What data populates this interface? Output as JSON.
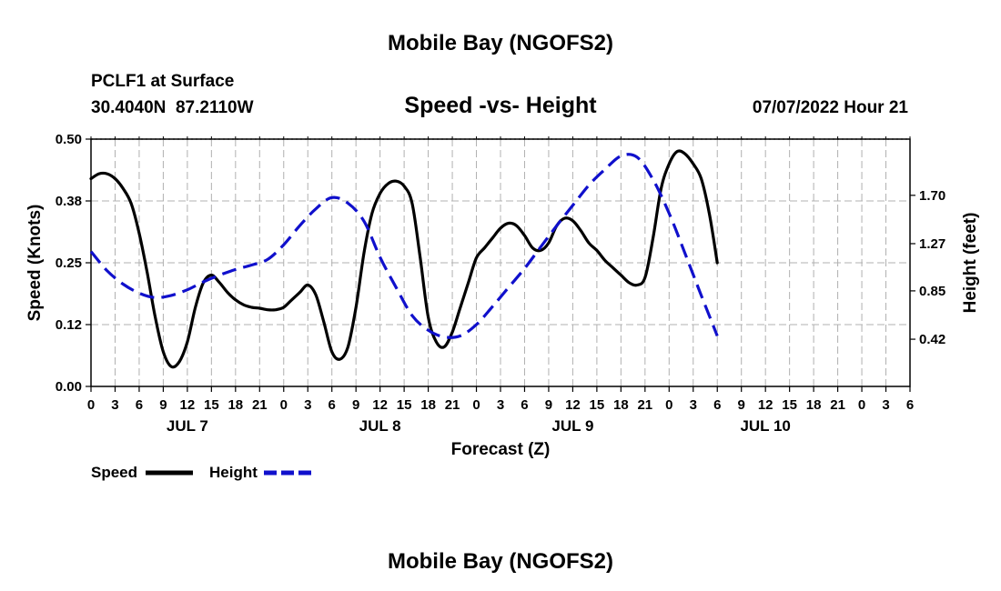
{
  "page": {
    "title": "Mobile Bay (NGOFS2)",
    "footer_title": "Mobile Bay (NGOFS2)",
    "station_line1": "PCLF1 at Surface",
    "station_line2": "30.4040N  87.2110W",
    "date_label": "07/07/2022 Hour 21"
  },
  "chart_data": {
    "type": "line",
    "title": "Speed -vs- Height",
    "xlabel": "Forecast (Z)",
    "ylabel_left": "Speed (Knots)",
    "ylabel_right": "Height (feet)",
    "x_unit": "hours from 00Z JUL 7",
    "xlim": [
      -21,
      78
    ],
    "x_ticks": [
      {
        "x": -21,
        "label": "0"
      },
      {
        "x": -18,
        "label": "3"
      },
      {
        "x": -15,
        "label": "6"
      },
      {
        "x": -12,
        "label": "9"
      },
      {
        "x": -9,
        "label": "12"
      },
      {
        "x": -6,
        "label": "15"
      },
      {
        "x": -3,
        "label": "18"
      },
      {
        "x": 0,
        "label": "21"
      },
      {
        "x": 3,
        "label": "0"
      },
      {
        "x": 6,
        "label": "3"
      },
      {
        "x": 9,
        "label": "6"
      },
      {
        "x": 12,
        "label": "9"
      },
      {
        "x": 15,
        "label": "12"
      },
      {
        "x": 18,
        "label": "15"
      },
      {
        "x": 21,
        "label": "18"
      },
      {
        "x": 24,
        "label": "21"
      },
      {
        "x": 27,
        "label": "0"
      },
      {
        "x": 30,
        "label": "3"
      },
      {
        "x": 33,
        "label": "6"
      },
      {
        "x": 36,
        "label": "9"
      },
      {
        "x": 39,
        "label": "12"
      },
      {
        "x": 42,
        "label": "15"
      },
      {
        "x": 45,
        "label": "18"
      },
      {
        "x": 48,
        "label": "21"
      },
      {
        "x": 51,
        "label": "0"
      },
      {
        "x": 54,
        "label": "3"
      },
      {
        "x": 57,
        "label": "6"
      },
      {
        "x": 60,
        "label": "9"
      },
      {
        "x": 63,
        "label": "12"
      },
      {
        "x": 66,
        "label": "15"
      },
      {
        "x": 69,
        "label": "18"
      },
      {
        "x": 72,
        "label": "21"
      },
      {
        "x": 75,
        "label": "0"
      },
      {
        "x": 78,
        "label": "3"
      },
      {
        "x": 81,
        "label": "6"
      }
    ],
    "day_labels": [
      {
        "x": -9,
        "label": "JUL 7"
      },
      {
        "x": 15,
        "label": "JUL 8"
      },
      {
        "x": 39,
        "label": "JUL 9"
      },
      {
        "x": 63,
        "label": "JUL 10"
      }
    ],
    "ylim_left": [
      0,
      0.5
    ],
    "yticks_left": [
      "0.00",
      "0.12",
      "0.25",
      "0.38",
      "0.50"
    ],
    "ylim_right": [
      0.0,
      2.2
    ],
    "yticks_right": [
      {
        "v": 0.42,
        "label": "0.42"
      },
      {
        "v": 0.85,
        "label": "0.85"
      },
      {
        "v": 1.27,
        "label": "1.27"
      },
      {
        "v": 1.7,
        "label": "1.70"
      }
    ],
    "grid": true,
    "legend_position": "bottom-left",
    "series": [
      {
        "name": "Speed",
        "axis": "left",
        "color": "#000000",
        "style": "solid",
        "x": [
          -21,
          -20,
          -19,
          -18,
          -17,
          -16,
          -15,
          -14,
          -13,
          -12,
          -11,
          -10,
          -9,
          -8,
          -7,
          -6,
          -5,
          -4,
          -3,
          -2,
          -1,
          0,
          1,
          2,
          3,
          4,
          5,
          6,
          7,
          8,
          9,
          10,
          11,
          12,
          13,
          14,
          15,
          16,
          17,
          18,
          19,
          20,
          21,
          22,
          23,
          24,
          25,
          26,
          27,
          28,
          29,
          30,
          31,
          32,
          33,
          34,
          35,
          36,
          37,
          38,
          39,
          40,
          41,
          42,
          43,
          44,
          45,
          46,
          47,
          48,
          49,
          50,
          51,
          52,
          53,
          54,
          55,
          56,
          57
        ],
        "values": [
          0.42,
          0.43,
          0.43,
          0.42,
          0.4,
          0.37,
          0.31,
          0.23,
          0.14,
          0.07,
          0.04,
          0.05,
          0.09,
          0.16,
          0.21,
          0.225,
          0.21,
          0.19,
          0.175,
          0.165,
          0.16,
          0.158,
          0.155,
          0.155,
          0.16,
          0.175,
          0.19,
          0.205,
          0.185,
          0.13,
          0.07,
          0.055,
          0.08,
          0.16,
          0.27,
          0.35,
          0.39,
          0.41,
          0.415,
          0.405,
          0.37,
          0.26,
          0.14,
          0.09,
          0.08,
          0.11,
          0.16,
          0.21,
          0.26,
          0.28,
          0.3,
          0.32,
          0.33,
          0.325,
          0.305,
          0.28,
          0.275,
          0.29,
          0.325,
          0.34,
          0.335,
          0.315,
          0.29,
          0.275,
          0.255,
          0.24,
          0.225,
          0.21,
          0.205,
          0.22,
          0.3,
          0.4,
          0.45,
          0.475,
          0.47,
          0.45,
          0.42,
          0.35,
          0.25
        ]
      },
      {
        "name": "Height",
        "axis": "right",
        "color": "#1010cc",
        "style": "dashed",
        "x": [
          -21,
          -19,
          -17,
          -15,
          -13,
          -11,
          -9,
          -7,
          -5,
          -3,
          -1,
          1,
          3,
          5,
          7,
          9,
          11,
          13,
          15,
          17,
          19,
          21,
          23,
          25,
          27,
          29,
          31,
          33,
          35,
          37,
          39,
          41,
          43,
          45,
          47,
          49,
          51,
          53,
          55,
          57
        ],
        "values": [
          1.2,
          1.03,
          0.91,
          0.83,
          0.79,
          0.81,
          0.86,
          0.93,
          0.99,
          1.04,
          1.08,
          1.13,
          1.26,
          1.43,
          1.58,
          1.68,
          1.63,
          1.47,
          1.15,
          0.88,
          0.63,
          0.5,
          0.44,
          0.45,
          0.55,
          0.71,
          0.88,
          1.05,
          1.24,
          1.43,
          1.61,
          1.79,
          1.93,
          2.05,
          2.04,
          1.84,
          1.54,
          1.18,
          0.81,
          0.45
        ]
      }
    ]
  },
  "legend": {
    "speed_label": "Speed",
    "height_label": "Height"
  }
}
